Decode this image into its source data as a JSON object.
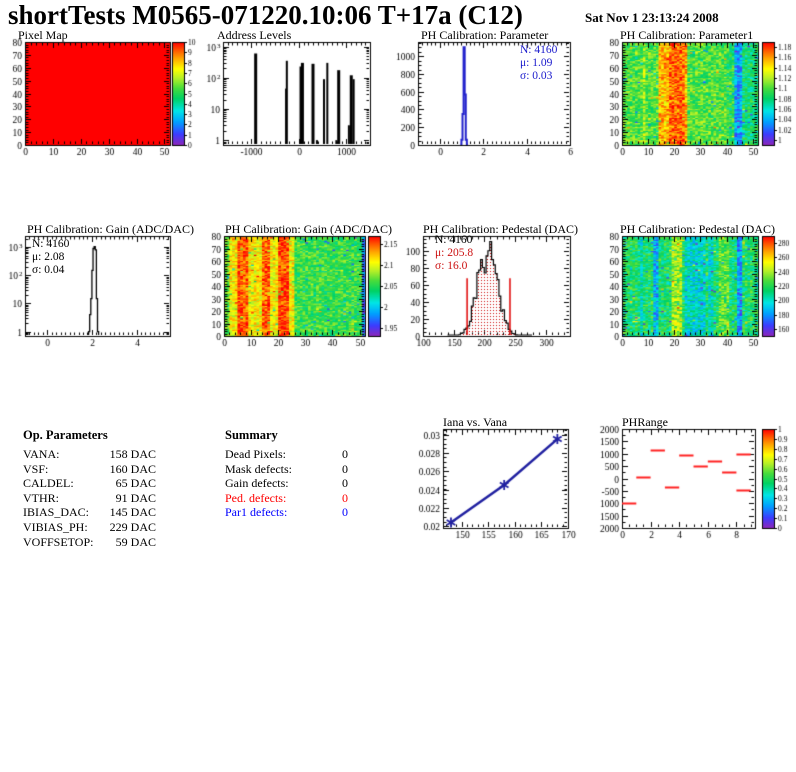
{
  "header": {
    "title": "shortTests M0565-071220.10:06 T+17a (C12)",
    "date": "Sat Nov  1 23:13:24 2008"
  },
  "op_parameters": {
    "heading": "Op. Parameters",
    "rows": [
      {
        "label": "VANA:",
        "value": "158 DAC"
      },
      {
        "label": "VSF:",
        "value": "160 DAC"
      },
      {
        "label": "CALDEL:",
        "value": "65 DAC"
      },
      {
        "label": "VTHR:",
        "value": "91 DAC"
      },
      {
        "label": "IBIAS_DAC:",
        "value": "145 DAC"
      },
      {
        "label": "VIBIAS_PH:",
        "value": "229 DAC"
      },
      {
        "label": "VOFFSETOP:",
        "value": "59 DAC"
      }
    ]
  },
  "summary": {
    "heading": "Summary",
    "rows": [
      {
        "label": "Dead Pixels:",
        "value": "0",
        "color": "#000000"
      },
      {
        "label": "Mask defects:",
        "value": "0",
        "color": "#000000"
      },
      {
        "label": "Gain defects:",
        "value": "0",
        "color": "#000000"
      },
      {
        "label": "Ped. defects:",
        "value": "0",
        "color": "#ff0000"
      },
      {
        "label": "Par1 defects:",
        "value": "0",
        "color": "#0000ff"
      }
    ]
  },
  "chart_data": [
    {
      "id": "pixel_map",
      "type": "heatmap-uniform",
      "title": "Pixel Map",
      "xlim": [
        0,
        52
      ],
      "xminor": 2,
      "ylim": [
        0,
        80
      ],
      "yminor": 2,
      "xticks": [
        [
          0,
          "0"
        ],
        [
          10,
          "10"
        ],
        [
          20,
          "20"
        ],
        [
          30,
          "30"
        ],
        [
          40,
          "40"
        ],
        [
          50,
          "50"
        ]
      ],
      "yticks": [
        [
          0,
          "0"
        ],
        [
          10,
          "10"
        ],
        [
          20,
          "20"
        ],
        [
          30,
          "30"
        ],
        [
          40,
          "40"
        ],
        [
          50,
          "50"
        ],
        [
          60,
          "60"
        ],
        [
          70,
          "70"
        ],
        [
          80,
          "80"
        ]
      ],
      "uniform_color": "#ff0000",
      "uniform_value": 10,
      "colorbar": {
        "min": 0,
        "max": 10,
        "labels": [
          [
            10,
            "10"
          ],
          [
            9,
            "9"
          ],
          [
            8,
            "8"
          ],
          [
            7,
            "7"
          ],
          [
            6,
            "6"
          ],
          [
            5,
            "5"
          ],
          [
            4,
            "4"
          ],
          [
            3,
            "3"
          ],
          [
            2,
            "2"
          ],
          [
            1,
            "1"
          ],
          [
            0,
            "0"
          ]
        ]
      }
    },
    {
      "id": "address_levels",
      "type": "spikes",
      "title": "Address Levels",
      "xlim": [
        -1600,
        1500
      ],
      "xminor": 100,
      "xticks": [
        [
          -1000,
          "-1000"
        ],
        [
          0,
          "0"
        ],
        [
          1000,
          "1000"
        ]
      ],
      "ylog": true,
      "ylim": [
        0.7,
        1400
      ],
      "yticks": [
        [
          1,
          "1",
          ""
        ],
        [
          10,
          "10",
          ""
        ],
        [
          100,
          "10",
          "2"
        ],
        [
          1000,
          "10",
          "3"
        ]
      ],
      "spikes": [
        [
          -911,
          600,
          3
        ],
        [
          -270,
          45,
          2
        ],
        [
          -254,
          350,
          2
        ],
        [
          35,
          230,
          2
        ],
        [
          75,
          300,
          3
        ],
        [
          298,
          280,
          3
        ],
        [
          382,
          1,
          2
        ],
        [
          530,
          90,
          2
        ],
        [
          600,
          300,
          2
        ],
        [
          790,
          1,
          2
        ],
        [
          840,
          175,
          3
        ],
        [
          1055,
          3,
          2
        ],
        [
          1105,
          120,
          3
        ],
        [
          1155,
          90,
          2
        ]
      ]
    },
    {
      "id": "ph_calibration_parameter",
      "type": "hist",
      "title": "PH Calibration: Parameter",
      "color": "#2222cc",
      "lw": 2,
      "xlim": [
        -1,
        6
      ],
      "xminor": 0.2,
      "xticks": [
        [
          0,
          "0"
        ],
        [
          2,
          "2"
        ],
        [
          4,
          "4"
        ],
        [
          6,
          "6"
        ]
      ],
      "ylim": [
        0,
        1160
      ],
      "yminor": 50,
      "yticks": [
        [
          0,
          "0"
        ],
        [
          200,
          "200"
        ],
        [
          400,
          "400"
        ],
        [
          600,
          "600"
        ],
        [
          800,
          "800"
        ],
        [
          1000,
          "1000"
        ]
      ],
      "binw": 0.05,
      "bins": [
        [
          0.95,
          5
        ],
        [
          1.0,
          60
        ],
        [
          1.05,
          350
        ],
        [
          1.1,
          1100
        ],
        [
          1.15,
          570
        ],
        [
          1.2,
          60
        ],
        [
          1.25,
          5
        ]
      ],
      "stats": [
        {
          "text": "N: 4160"
        },
        {
          "text": "μ: 1.09"
        },
        {
          "text": "σ: 0.03"
        }
      ]
    },
    {
      "id": "ph_calibration_parameter1_map",
      "type": "heatmap",
      "title": "PH Calibration: Parameter1",
      "xlim": [
        0,
        52
      ],
      "xminor": 2,
      "ylim": [
        0,
        80
      ],
      "yminor": 2,
      "xticks": [
        [
          0,
          "0"
        ],
        [
          10,
          "10"
        ],
        [
          20,
          "20"
        ],
        [
          30,
          "30"
        ],
        [
          40,
          "40"
        ],
        [
          50,
          "50"
        ]
      ],
      "yticks": [
        [
          0,
          "0"
        ],
        [
          10,
          "10"
        ],
        [
          20,
          "20"
        ],
        [
          30,
          "30"
        ],
        [
          40,
          "40"
        ],
        [
          50,
          "50"
        ],
        [
          60,
          "60"
        ],
        [
          70,
          "70"
        ],
        [
          80,
          "80"
        ]
      ],
      "noise": {
        "seed": 7,
        "base": 0.55,
        "amp": 0.13,
        "cols": [
          [
            14,
            24,
            0.27
          ],
          [
            18,
            23,
            0.08
          ],
          [
            8,
            8,
            0.08
          ],
          [
            43,
            45,
            -0.33
          ],
          [
            46,
            51,
            -0.1
          ],
          [
            40,
            42,
            -0.05
          ]
        ]
      },
      "colorbar": {
        "min": 0.99,
        "max": 1.19,
        "labels": [
          [
            1.18,
            "1.18"
          ],
          [
            1.16,
            "1.16"
          ],
          [
            1.14,
            "1.14"
          ],
          [
            1.12,
            "1.12"
          ],
          [
            1.1,
            "1.1"
          ],
          [
            1.08,
            "1.08"
          ],
          [
            1.06,
            "1.06"
          ],
          [
            1.04,
            "1.04"
          ],
          [
            1.02,
            "1.02"
          ],
          [
            1,
            "1"
          ]
        ]
      }
    },
    {
      "id": "ph_calibration_gain_hist",
      "type": "hist",
      "title": "PH Calibration: Gain (ADC/DAC)",
      "color": "#000000",
      "lw": 1.3,
      "xlim": [
        -1,
        5.5
      ],
      "xminor": 0.2,
      "xticks": [
        [
          0,
          "0"
        ],
        [
          2,
          "2"
        ],
        [
          4,
          "4"
        ]
      ],
      "ylog": true,
      "ylim": [
        0.7,
        2500
      ],
      "yticks": [
        [
          1,
          "1",
          ""
        ],
        [
          10,
          "10",
          ""
        ],
        [
          100,
          "10",
          "2"
        ],
        [
          1000,
          "10",
          "3"
        ]
      ],
      "binw": 0.05,
      "bins": [
        [
          1.85,
          1
        ],
        [
          1.9,
          4
        ],
        [
          1.95,
          15
        ],
        [
          2.0,
          150
        ],
        [
          2.05,
          900
        ],
        [
          2.1,
          1050
        ],
        [
          2.15,
          800
        ],
        [
          2.2,
          15
        ],
        [
          2.25,
          1
        ]
      ],
      "stats": [
        {
          "text": "N: 4160"
        },
        {
          "text": "μ: 2.08"
        },
        {
          "text": "σ: 0.04"
        }
      ]
    },
    {
      "id": "ph_calibration_gain_map",
      "type": "heatmap",
      "title": "PH Calibration: Gain (ADC/DAC)",
      "xlim": [
        0,
        52
      ],
      "xminor": 2,
      "ylim": [
        0,
        80
      ],
      "yminor": 2,
      "xticks": [
        [
          0,
          "0"
        ],
        [
          10,
          "10"
        ],
        [
          20,
          "20"
        ],
        [
          30,
          "30"
        ],
        [
          40,
          "40"
        ],
        [
          50,
          "50"
        ]
      ],
      "yticks": [
        [
          0,
          "0"
        ],
        [
          10,
          "10"
        ],
        [
          20,
          "20"
        ],
        [
          30,
          "30"
        ],
        [
          40,
          "40"
        ],
        [
          50,
          "50"
        ],
        [
          60,
          "60"
        ],
        [
          70,
          "70"
        ],
        [
          80,
          "80"
        ]
      ],
      "noise": {
        "seed": 13,
        "base": 0.62,
        "amp": 0.12,
        "cols": [
          [
            0,
            1,
            -0.05
          ],
          [
            2,
            25,
            0.12
          ],
          [
            5,
            8,
            0.18
          ],
          [
            14,
            16,
            0.16
          ],
          [
            20,
            23,
            0.2
          ],
          [
            26,
            50,
            -0.1
          ],
          [
            51,
            51,
            -0.45
          ]
        ]
      },
      "colorbar": {
        "min": 1.93,
        "max": 2.17,
        "labels": [
          [
            2.15,
            "2.15"
          ],
          [
            2.1,
            "2.1"
          ],
          [
            2.05,
            "2.05"
          ],
          [
            2,
            "2"
          ],
          [
            1.95,
            "1.95"
          ]
        ]
      }
    },
    {
      "id": "ph_calibration_pedestal_hist",
      "type": "hist-gauss",
      "title": "PH Calibration: Pedestal (DAC)",
      "color": "#000000",
      "fill_dot_color": "#cc0000",
      "line_color": "#e00000",
      "xlim": [
        100,
        340
      ],
      "xminor": 10,
      "xticks": [
        [
          100,
          "100"
        ],
        [
          150,
          "150"
        ],
        [
          200,
          "200"
        ],
        [
          250,
          "250"
        ],
        [
          300,
          "300"
        ]
      ],
      "ylim": [
        0,
        118
      ],
      "yminor": 5,
      "yticks": [
        [
          0,
          "0"
        ],
        [
          20,
          "20"
        ],
        [
          40,
          "40"
        ],
        [
          60,
          "60"
        ],
        [
          80,
          "80"
        ],
        [
          100,
          "100"
        ]
      ],
      "gauss": {
        "mu": 205.8,
        "sigma": 16.0,
        "amp": 100,
        "binw": 3,
        "from": 140,
        "to": 278,
        "seed": 21
      },
      "red_lines": {
        "x": [
          172,
          242
        ],
        "height": 68
      },
      "stats": [
        {
          "text": "N: 4160",
          "color": "#000000"
        },
        {
          "text": "μ: 205.8",
          "color": "#cc1111"
        },
        {
          "text": "σ: 16.0",
          "color": "#cc1111"
        }
      ]
    },
    {
      "id": "ph_calibration_pedestal_map",
      "type": "heatmap",
      "title": "PH Calibration: Pedestal (DAC)",
      "xlim": [
        0,
        52
      ],
      "xminor": 2,
      "ylim": [
        0,
        80
      ],
      "yminor": 2,
      "xticks": [
        [
          0,
          "0"
        ],
        [
          10,
          "10"
        ],
        [
          20,
          "20"
        ],
        [
          30,
          "30"
        ],
        [
          40,
          "40"
        ],
        [
          50,
          "50"
        ]
      ],
      "yticks": [
        [
          0,
          "0"
        ],
        [
          10,
          "10"
        ],
        [
          20,
          "20"
        ],
        [
          30,
          "30"
        ],
        [
          40,
          "40"
        ],
        [
          50,
          "50"
        ],
        [
          60,
          "60"
        ],
        [
          70,
          "70"
        ],
        [
          80,
          "80"
        ]
      ],
      "noise": {
        "seed": 31,
        "base": 0.47,
        "amp": 0.14,
        "cols": [
          [
            19,
            22,
            0.17
          ],
          [
            37,
            40,
            0.1
          ],
          [
            12,
            13,
            -0.22
          ],
          [
            24,
            31,
            -0.13
          ],
          [
            44,
            45,
            -0.26
          ],
          [
            7,
            7,
            -0.12
          ],
          [
            33,
            34,
            -0.1
          ]
        ]
      },
      "colorbar": {
        "min": 150,
        "max": 290,
        "labels": [
          [
            280,
            "280"
          ],
          [
            260,
            "260"
          ],
          [
            240,
            "240"
          ],
          [
            220,
            "220"
          ],
          [
            200,
            "200"
          ],
          [
            180,
            "180"
          ],
          [
            160,
            "160"
          ]
        ]
      }
    },
    {
      "id": "iana_vs_vana",
      "type": "line",
      "title": "Iana vs. Vana",
      "color": "#2020a0",
      "xlim": [
        146.5,
        170
      ],
      "xminor": 1,
      "xticks": [
        [
          150,
          "150"
        ],
        [
          155,
          "155"
        ],
        [
          160,
          "160"
        ],
        [
          165,
          "165"
        ],
        [
          170,
          "170"
        ]
      ],
      "ylim": [
        0.0198,
        0.0306
      ],
      "yminor": 0.0005,
      "yticks": [
        [
          0.02,
          "0.02"
        ],
        [
          0.022,
          "0.022"
        ],
        [
          0.024,
          "0.024"
        ],
        [
          0.026,
          "0.026"
        ],
        [
          0.028,
          "0.028"
        ],
        [
          0.03,
          "0.03"
        ]
      ],
      "points": [
        [
          148,
          0.0204
        ],
        [
          158,
          0.0245
        ],
        [
          168,
          0.0295
        ]
      ]
    },
    {
      "id": "ph_range",
      "type": "segments",
      "title": "PHRange",
      "color": "#ff2020",
      "xlim": [
        0,
        9.3
      ],
      "xminor": 0.5,
      "xticks": [
        [
          0,
          "0"
        ],
        [
          2,
          "2"
        ],
        [
          4,
          "4"
        ],
        [
          6,
          "6"
        ],
        [
          8,
          "8"
        ]
      ],
      "ylim": [
        -2000,
        2000
      ],
      "yminor": 250,
      "yticks": [
        [
          2000,
          "2000"
        ],
        [
          1500,
          "1500"
        ],
        [
          1000,
          "1000"
        ],
        [
          500,
          "500"
        ],
        [
          0,
          "0"
        ],
        [
          -500,
          "-500"
        ],
        [
          -1000,
          "1000"
        ],
        [
          -1500,
          "1500"
        ],
        [
          -2000,
          "2000"
        ]
      ],
      "segments": [
        [
          0,
          1,
          -1000
        ],
        [
          1,
          2,
          50
        ],
        [
          2,
          3,
          1150
        ],
        [
          3,
          4,
          -350
        ],
        [
          4,
          5,
          950
        ],
        [
          5,
          6,
          500
        ],
        [
          6,
          7,
          700
        ],
        [
          7,
          8,
          250
        ],
        [
          8,
          9,
          1000
        ],
        [
          8,
          9,
          -450
        ]
      ],
      "colorbar": {
        "min": 0,
        "max": 1,
        "labels": [
          [
            1,
            "1"
          ],
          [
            0.9,
            "0.9"
          ],
          [
            0.8,
            "0.8"
          ],
          [
            0.7,
            "0.7"
          ],
          [
            0.6,
            "0.6"
          ],
          [
            0.5,
            "0.5"
          ],
          [
            0.4,
            "0.4"
          ],
          [
            0.3,
            "0.3"
          ],
          [
            0.2,
            "0.2"
          ],
          [
            0.1,
            "0.1"
          ],
          [
            0,
            "0"
          ]
        ]
      }
    }
  ]
}
